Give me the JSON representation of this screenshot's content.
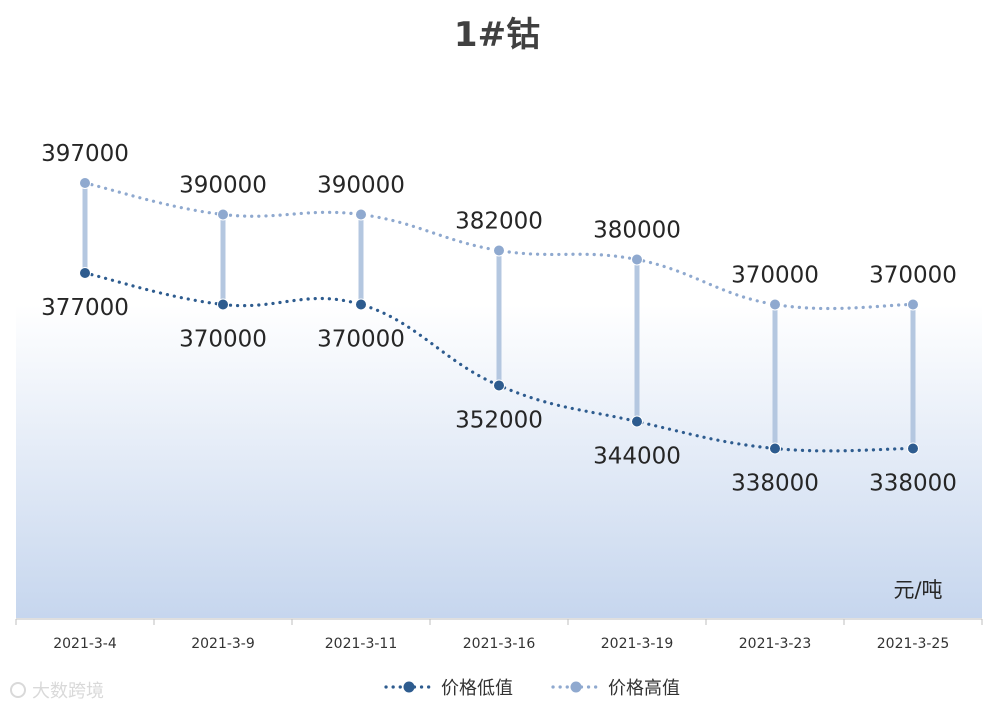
{
  "chart_data": {
    "type": "line",
    "title": "1#钴",
    "unit_label": "元/吨",
    "categories": [
      "2021-3-4",
      "2021-3-9",
      "2021-3-11",
      "2021-3-16",
      "2021-3-19",
      "2021-3-23",
      "2021-3-25"
    ],
    "series": [
      {
        "name": "价格低值",
        "values": [
          377000,
          370000,
          370000,
          352000,
          344000,
          338000,
          338000
        ],
        "color": "#2e5c8f"
      },
      {
        "name": "价格高值",
        "values": [
          397000,
          390000,
          390000,
          382000,
          380000,
          370000,
          370000
        ],
        "color": "#8fa9cf"
      }
    ],
    "connector_color": "#b4c7e0",
    "plot_gradient": [
      "#ffffff",
      "#c6d6ee"
    ],
    "grid": false,
    "legend_position": "bottom"
  },
  "watermark": "大数跨境"
}
